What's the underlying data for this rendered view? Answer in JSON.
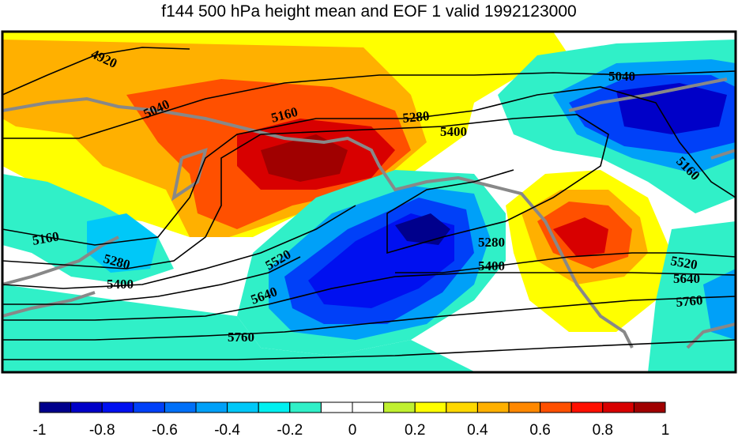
{
  "title": "f144 500 hPa height mean and EOF 1 valid 1992123000",
  "contour_labels": [
    "4920",
    "5040",
    "5040",
    "5160",
    "5160",
    "5160",
    "5280",
    "5280",
    "5280",
    "5400",
    "5400",
    "5400",
    "5520",
    "5520",
    "5640",
    "5640",
    "5760",
    "5760"
  ],
  "colorbar": {
    "min": -1,
    "max": 1,
    "step": 0.1,
    "tick_labels": [
      "-1",
      "-0.8",
      "-0.6",
      "-0.4",
      "-0.2",
      "0",
      "0.2",
      "0.4",
      "0.6",
      "0.8",
      "1"
    ],
    "colors": [
      "#00008c",
      "#0000c8",
      "#0010f0",
      "#0040f8",
      "#0070f8",
      "#00a0f8",
      "#00c8f8",
      "#00f0f0",
      "#30f0c8",
      "#ffffff",
      "#ffffff",
      "#c0f030",
      "#ffff00",
      "#ffd800",
      "#ffb000",
      "#ff8800",
      "#ff5000",
      "#ff1000",
      "#d80000",
      "#a00000"
    ]
  }
}
